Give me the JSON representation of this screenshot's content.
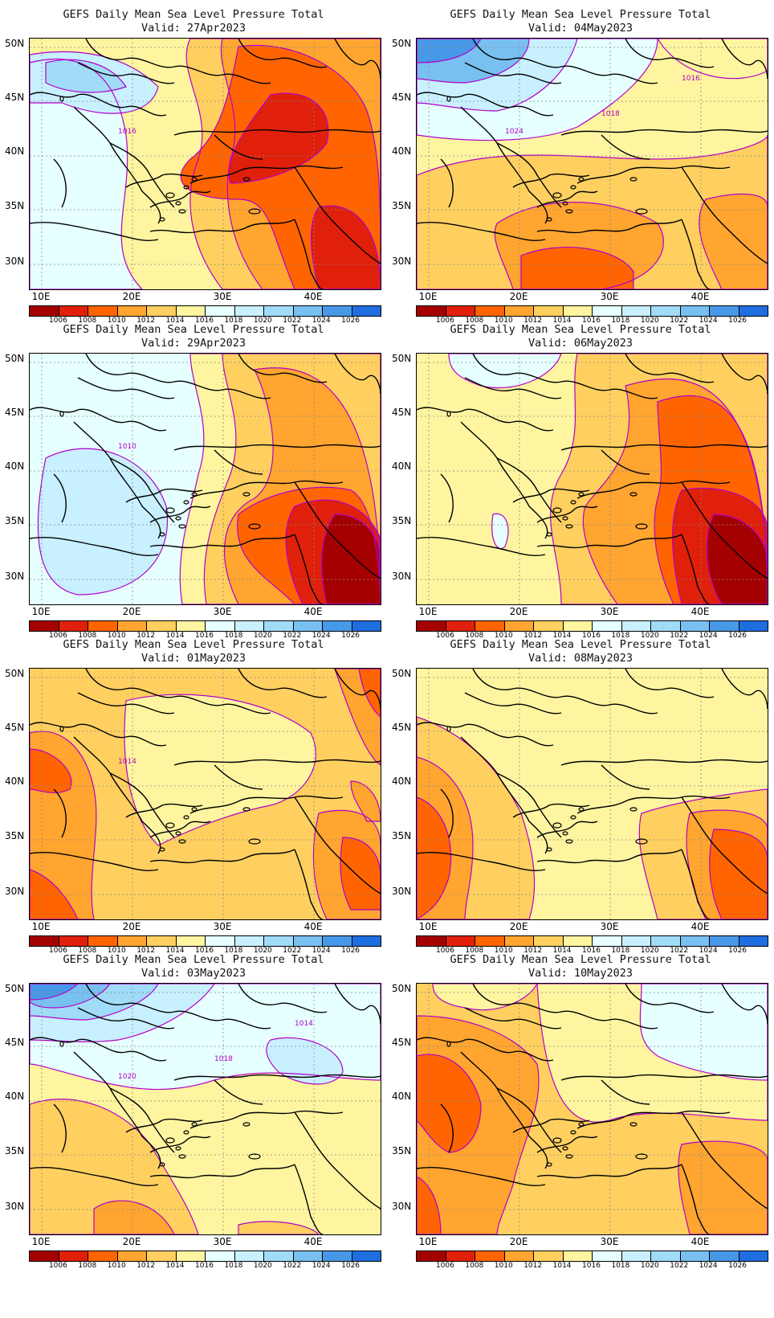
{
  "panels": [
    {
      "title": "GEFS Daily Mean Sea Level Pressure Total",
      "valid": "Valid: 27Apr2023",
      "pattern": "low-east-strong",
      "labels": [
        "1016"
      ]
    },
    {
      "title": "GEFS Daily Mean Sea Level Pressure Total",
      "valid": "Valid: 04May2023",
      "pattern": "high-nw-low-south",
      "labels": [
        "1024",
        "1018",
        "1016"
      ]
    },
    {
      "title": "GEFS Daily Mean Sea Level Pressure Total",
      "valid": "Valid: 29Apr2023",
      "pattern": "high-west-low-se",
      "labels": [
        "1010"
      ]
    },
    {
      "title": "GEFS Daily Mean Sea Level Pressure Total",
      "valid": "Valid: 06May2023",
      "pattern": "low-east-se",
      "labels": []
    },
    {
      "title": "GEFS Daily Mean Sea Level Pressure Total",
      "valid": "Valid: 01May2023",
      "pattern": "uniform-mid",
      "labels": [
        "1014"
      ]
    },
    {
      "title": "GEFS Daily Mean Sea Level Pressure Total",
      "valid": "Valid: 08May2023",
      "pattern": "uniform-mid-light",
      "labels": []
    },
    {
      "title": "GEFS Daily Mean Sea Level Pressure Total",
      "valid": "Valid: 03May2023",
      "pattern": "high-north",
      "labels": [
        "1020",
        "1018",
        "1014"
      ]
    },
    {
      "title": "GEFS Daily Mean Sea Level Pressure Total",
      "valid": "Valid: 10May2023",
      "pattern": "mixed-high-ne",
      "labels": []
    }
  ],
  "axes": {
    "lat_labels": [
      "50N",
      "45N",
      "40N",
      "35N",
      "30N"
    ],
    "lon_labels": [
      "10E",
      "20E",
      "30E",
      "40E"
    ]
  },
  "colorbar": {
    "levels": [
      "1006",
      "1008",
      "1010",
      "1012",
      "1014",
      "1016",
      "1018",
      "1020",
      "1022",
      "1024",
      "1026"
    ],
    "colors": [
      "#a50000",
      "#e0200a",
      "#ff6400",
      "#ffa530",
      "#ffd060",
      "#fff5a0",
      "#e6ffff",
      "#c8f0ff",
      "#a0dcf8",
      "#78c0f0",
      "#4898e8",
      "#1e6ee0"
    ]
  },
  "contour_color": "#b400c8"
}
